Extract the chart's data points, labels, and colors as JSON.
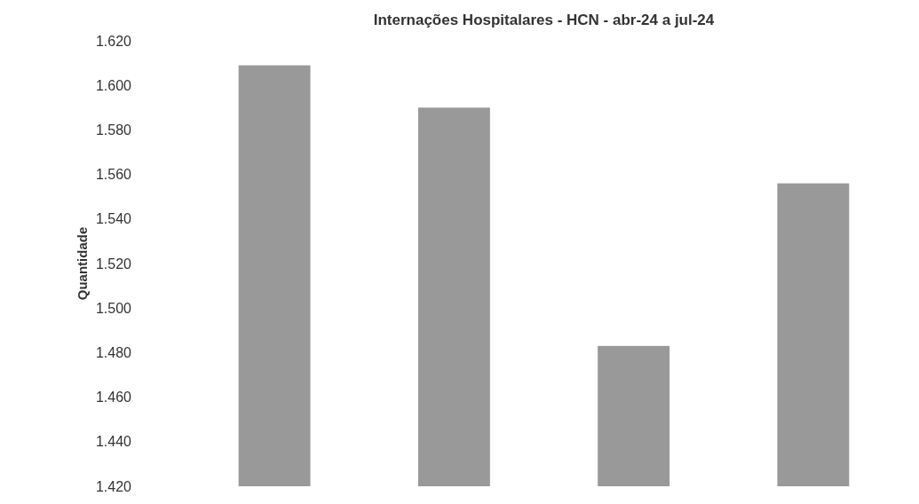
{
  "chart_data": {
    "type": "bar",
    "title": "Internações Hospitalares - HCN - abr-24 a jul-24",
    "ylabel": "Quantidade",
    "categories": [
      null,
      null,
      null,
      null
    ],
    "values": [
      1609,
      1590,
      1483,
      1556
    ],
    "color": "#999999",
    "ylim": [
      1420,
      1620
    ],
    "yticks": [
      {
        "value": 1420,
        "label": "1.420"
      },
      {
        "value": 1440,
        "label": "1.440"
      },
      {
        "value": 1460,
        "label": "1.460"
      },
      {
        "value": 1480,
        "label": "1.480"
      },
      {
        "value": 1500,
        "label": "1.500"
      },
      {
        "value": 1520,
        "label": "1.520"
      },
      {
        "value": 1540,
        "label": "1.540"
      },
      {
        "value": 1560,
        "label": "1.560"
      },
      {
        "value": 1580,
        "label": "1.580"
      },
      {
        "value": 1600,
        "label": "1.600"
      },
      {
        "value": 1620,
        "label": "1.620"
      }
    ],
    "grid": false
  }
}
